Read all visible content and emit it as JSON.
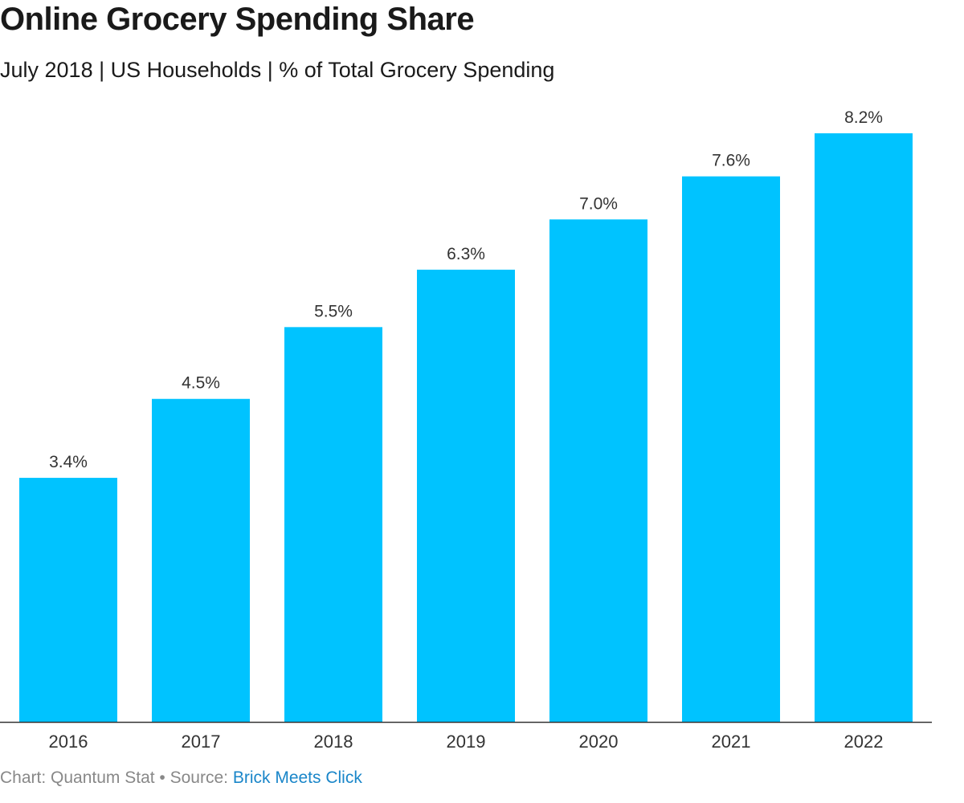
{
  "chart_data": {
    "type": "bar",
    "title": "Online Grocery Spending Share",
    "subtitle": "July 2018 | US Households | % of Total Grocery Spending",
    "categories": [
      "2016",
      "2017",
      "2018",
      "2019",
      "2020",
      "2021",
      "2022"
    ],
    "values": [
      3.4,
      4.5,
      5.5,
      6.3,
      7.0,
      7.6,
      8.2
    ],
    "data_labels": [
      "3.4%",
      "4.5%",
      "5.5%",
      "6.3%",
      "7.0%",
      "7.6%",
      "8.2%"
    ],
    "xlabel": "",
    "ylabel": "",
    "ylim": [
      0,
      8.2
    ],
    "grid": false,
    "legend": "none"
  },
  "footer": {
    "prefix": "Chart: Quantum Stat • Source: ",
    "source_link": "Brick Meets Click"
  },
  "colors": {
    "bar": "#00c3ff",
    "axis": "#333333",
    "link": "#1a86c9"
  }
}
